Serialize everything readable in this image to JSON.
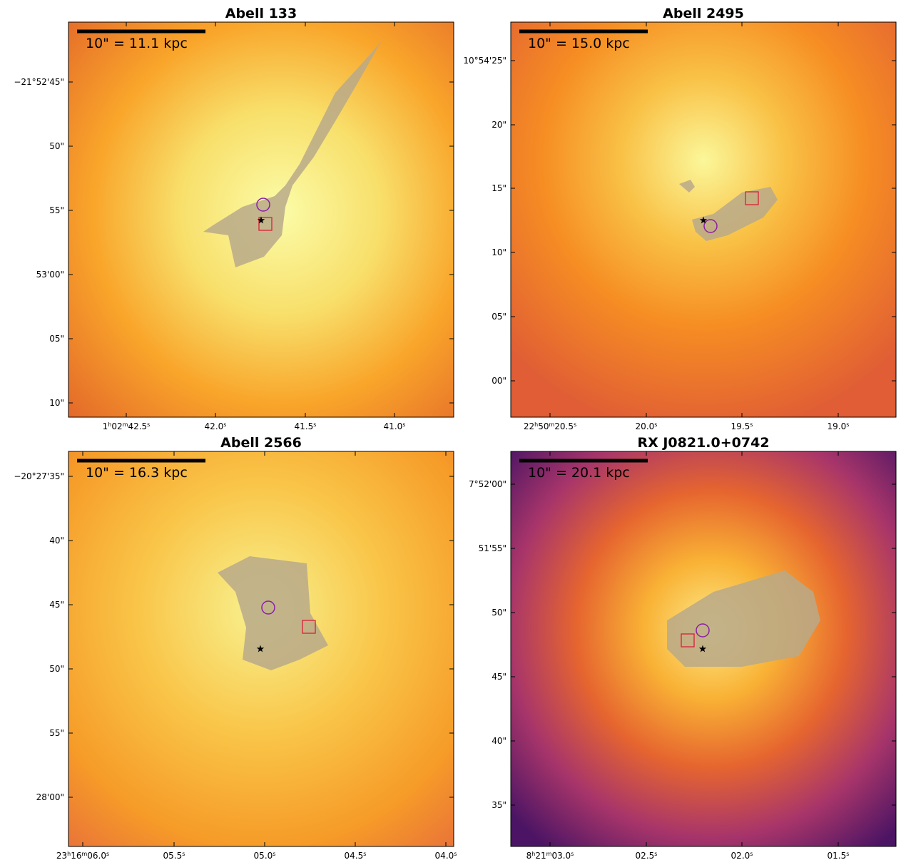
{
  "panels": [
    {
      "title": "Abell 133",
      "scale_label": "10\" = 11.1 kpc",
      "yticks": [
        "−21°52'45\"",
        "50\"",
        "55\"",
        "53'00\"",
        "05\"",
        "10\""
      ],
      "xticks": [
        "1h02m42.5s",
        "42.0s",
        "41.5s",
        "41.0s"
      ]
    },
    {
      "title": "Abell 2495",
      "scale_label": "10\" = 15.0 kpc",
      "yticks": [
        "10°54'25\"",
        "20\"",
        "15\"",
        "10\"",
        "05\"",
        "00\""
      ],
      "xticks": [
        "22h50m20.5s",
        "20.0s",
        "19.5s",
        "19.0s"
      ]
    },
    {
      "title": "Abell 2566",
      "scale_label": "10\" = 16.3 kpc",
      "yticks": [
        "−20°27'35\"",
        "40\"",
        "45\"",
        "50\"",
        "55\"",
        "28'00\""
      ],
      "xticks": [
        "23h16m06.0s",
        "05.5s",
        "05.0s",
        "04.5s",
        "04.0s"
      ]
    },
    {
      "title": "RX J0821.0+0742",
      "scale_label": "10\" = 20.1 kpc",
      "yticks": [
        "7°52'00\"",
        "51'55\"",
        "50\"",
        "45\"",
        "40\"",
        "35\""
      ],
      "xticks": [
        "8h21m03.0s",
        "02.5s",
        "02.0s",
        "01.5s"
      ]
    }
  ]
}
